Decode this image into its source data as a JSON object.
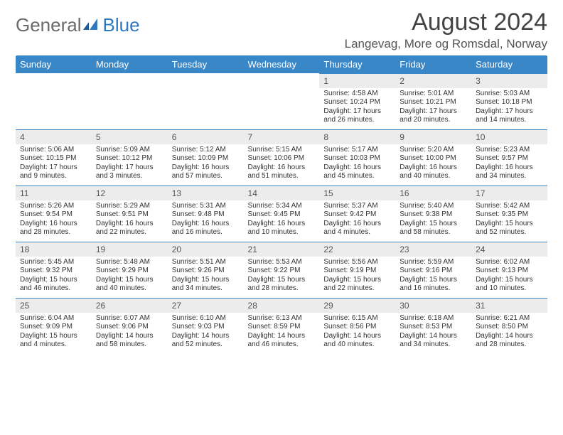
{
  "brand": {
    "word1": "General",
    "word2": "Blue"
  },
  "header": {
    "month_title": "August 2024",
    "location": "Langevag, More og Romsdal, Norway"
  },
  "colors": {
    "header_bg": "#3a87c8",
    "header_text": "#ffffff",
    "daynum_bg": "#ececec",
    "row_divider": "#3a87c8",
    "body_text": "#333333",
    "logo_gray": "#6a6a6a",
    "logo_blue": "#2f78bd"
  },
  "weekdays": [
    "Sunday",
    "Monday",
    "Tuesday",
    "Wednesday",
    "Thursday",
    "Friday",
    "Saturday"
  ],
  "weeks": [
    [
      {
        "empty": true
      },
      {
        "empty": true
      },
      {
        "empty": true
      },
      {
        "empty": true
      },
      {
        "day": 1,
        "sunrise": "4:58 AM",
        "sunset": "10:24 PM",
        "daylight": "17 hours and 26 minutes."
      },
      {
        "day": 2,
        "sunrise": "5:01 AM",
        "sunset": "10:21 PM",
        "daylight": "17 hours and 20 minutes."
      },
      {
        "day": 3,
        "sunrise": "5:03 AM",
        "sunset": "10:18 PM",
        "daylight": "17 hours and 14 minutes."
      }
    ],
    [
      {
        "day": 4,
        "sunrise": "5:06 AM",
        "sunset": "10:15 PM",
        "daylight": "17 hours and 9 minutes."
      },
      {
        "day": 5,
        "sunrise": "5:09 AM",
        "sunset": "10:12 PM",
        "daylight": "17 hours and 3 minutes."
      },
      {
        "day": 6,
        "sunrise": "5:12 AM",
        "sunset": "10:09 PM",
        "daylight": "16 hours and 57 minutes."
      },
      {
        "day": 7,
        "sunrise": "5:15 AM",
        "sunset": "10:06 PM",
        "daylight": "16 hours and 51 minutes."
      },
      {
        "day": 8,
        "sunrise": "5:17 AM",
        "sunset": "10:03 PM",
        "daylight": "16 hours and 45 minutes."
      },
      {
        "day": 9,
        "sunrise": "5:20 AM",
        "sunset": "10:00 PM",
        "daylight": "16 hours and 40 minutes."
      },
      {
        "day": 10,
        "sunrise": "5:23 AM",
        "sunset": "9:57 PM",
        "daylight": "16 hours and 34 minutes."
      }
    ],
    [
      {
        "day": 11,
        "sunrise": "5:26 AM",
        "sunset": "9:54 PM",
        "daylight": "16 hours and 28 minutes."
      },
      {
        "day": 12,
        "sunrise": "5:29 AM",
        "sunset": "9:51 PM",
        "daylight": "16 hours and 22 minutes."
      },
      {
        "day": 13,
        "sunrise": "5:31 AM",
        "sunset": "9:48 PM",
        "daylight": "16 hours and 16 minutes."
      },
      {
        "day": 14,
        "sunrise": "5:34 AM",
        "sunset": "9:45 PM",
        "daylight": "16 hours and 10 minutes."
      },
      {
        "day": 15,
        "sunrise": "5:37 AM",
        "sunset": "9:42 PM",
        "daylight": "16 hours and 4 minutes."
      },
      {
        "day": 16,
        "sunrise": "5:40 AM",
        "sunset": "9:38 PM",
        "daylight": "15 hours and 58 minutes."
      },
      {
        "day": 17,
        "sunrise": "5:42 AM",
        "sunset": "9:35 PM",
        "daylight": "15 hours and 52 minutes."
      }
    ],
    [
      {
        "day": 18,
        "sunrise": "5:45 AM",
        "sunset": "9:32 PM",
        "daylight": "15 hours and 46 minutes."
      },
      {
        "day": 19,
        "sunrise": "5:48 AM",
        "sunset": "9:29 PM",
        "daylight": "15 hours and 40 minutes."
      },
      {
        "day": 20,
        "sunrise": "5:51 AM",
        "sunset": "9:26 PM",
        "daylight": "15 hours and 34 minutes."
      },
      {
        "day": 21,
        "sunrise": "5:53 AM",
        "sunset": "9:22 PM",
        "daylight": "15 hours and 28 minutes."
      },
      {
        "day": 22,
        "sunrise": "5:56 AM",
        "sunset": "9:19 PM",
        "daylight": "15 hours and 22 minutes."
      },
      {
        "day": 23,
        "sunrise": "5:59 AM",
        "sunset": "9:16 PM",
        "daylight": "15 hours and 16 minutes."
      },
      {
        "day": 24,
        "sunrise": "6:02 AM",
        "sunset": "9:13 PM",
        "daylight": "15 hours and 10 minutes."
      }
    ],
    [
      {
        "day": 25,
        "sunrise": "6:04 AM",
        "sunset": "9:09 PM",
        "daylight": "15 hours and 4 minutes."
      },
      {
        "day": 26,
        "sunrise": "6:07 AM",
        "sunset": "9:06 PM",
        "daylight": "14 hours and 58 minutes."
      },
      {
        "day": 27,
        "sunrise": "6:10 AM",
        "sunset": "9:03 PM",
        "daylight": "14 hours and 52 minutes."
      },
      {
        "day": 28,
        "sunrise": "6:13 AM",
        "sunset": "8:59 PM",
        "daylight": "14 hours and 46 minutes."
      },
      {
        "day": 29,
        "sunrise": "6:15 AM",
        "sunset": "8:56 PM",
        "daylight": "14 hours and 40 minutes."
      },
      {
        "day": 30,
        "sunrise": "6:18 AM",
        "sunset": "8:53 PM",
        "daylight": "14 hours and 34 minutes."
      },
      {
        "day": 31,
        "sunrise": "6:21 AM",
        "sunset": "8:50 PM",
        "daylight": "14 hours and 28 minutes."
      }
    ]
  ],
  "labels": {
    "sunrise_prefix": "Sunrise: ",
    "sunset_prefix": "Sunset: ",
    "daylight_prefix": "Daylight: "
  }
}
